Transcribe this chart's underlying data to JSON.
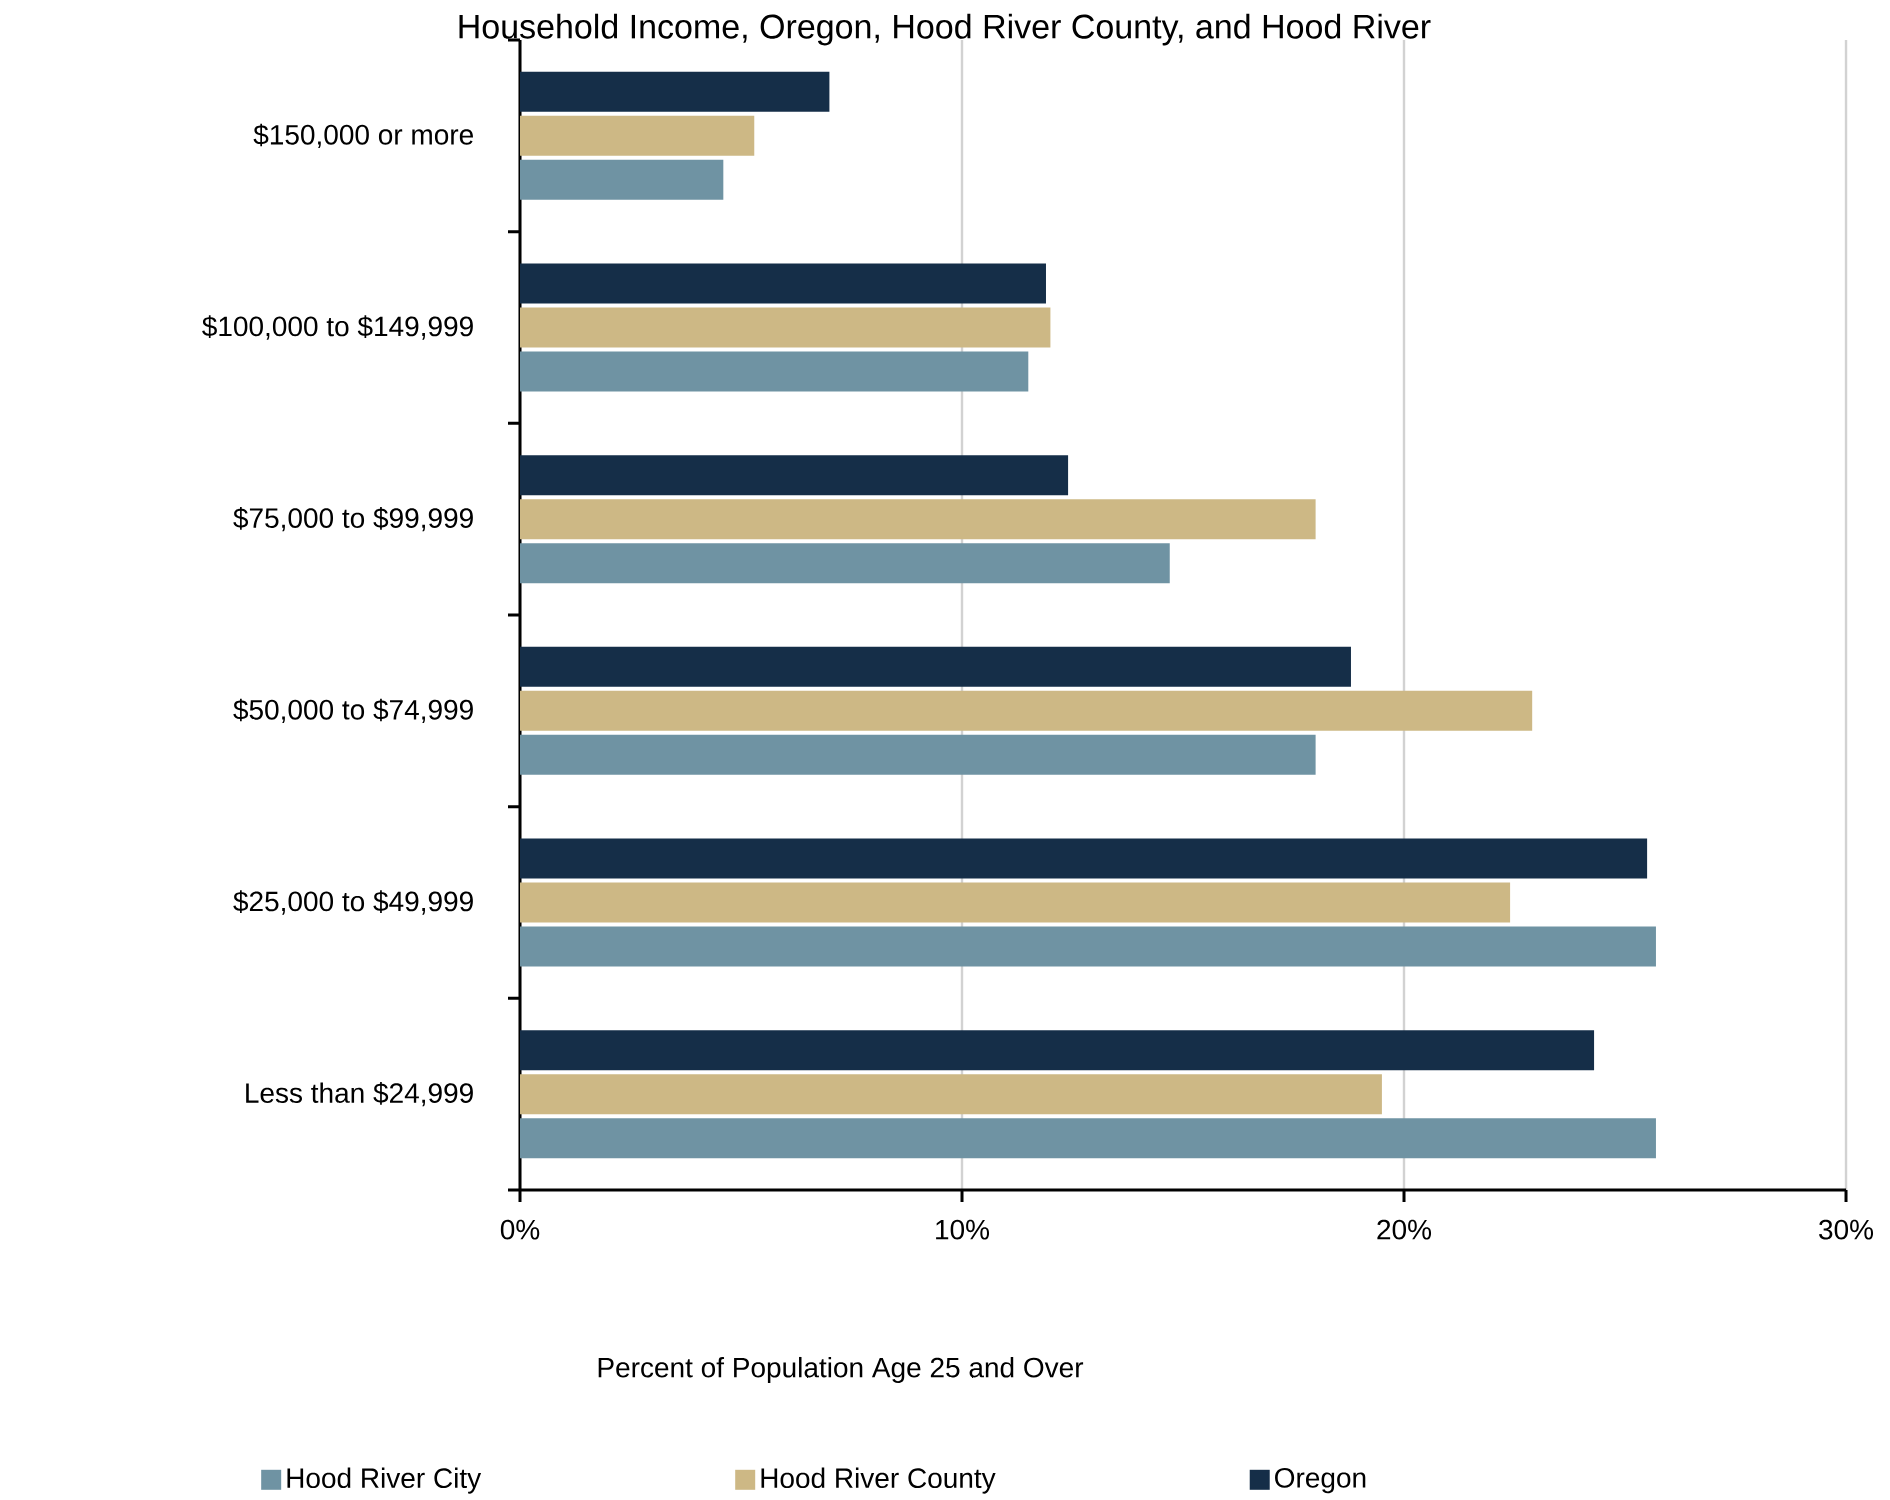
{
  "chart_data": {
    "type": "bar",
    "orientation": "horizontal",
    "title": "Household Income, Oregon, Hood River County, and Hood River",
    "xlabel": "Percent of Population Age 25 and Over",
    "categories": [
      "$150,000 or more",
      "$100,000 to $149,999",
      "$75,000 to $99,999",
      "$50,000 to $74,999",
      "$25,000 to $49,999",
      "Less than $24,999"
    ],
    "series": [
      {
        "name": "Hood River City",
        "color": "#6f93a3",
        "values": [
          4.6,
          11.5,
          14.7,
          18.0,
          25.7,
          25.7
        ]
      },
      {
        "name": "Hood River County",
        "color": "#cdb885",
        "values": [
          5.3,
          12.0,
          18.0,
          22.9,
          22.4,
          19.5
        ]
      },
      {
        "name": "Oregon",
        "color": "#152e48",
        "values": [
          7.0,
          11.9,
          12.4,
          18.8,
          25.5,
          24.3
        ]
      }
    ],
    "xlim": [
      0,
      30
    ],
    "xticks": [
      {
        "value": 0,
        "label": "0%"
      },
      {
        "value": 10,
        "label": "10%"
      },
      {
        "value": 20,
        "label": "20%"
      },
      {
        "value": 30,
        "label": "30%"
      }
    ],
    "grid": "x",
    "legend": "bottom"
  }
}
